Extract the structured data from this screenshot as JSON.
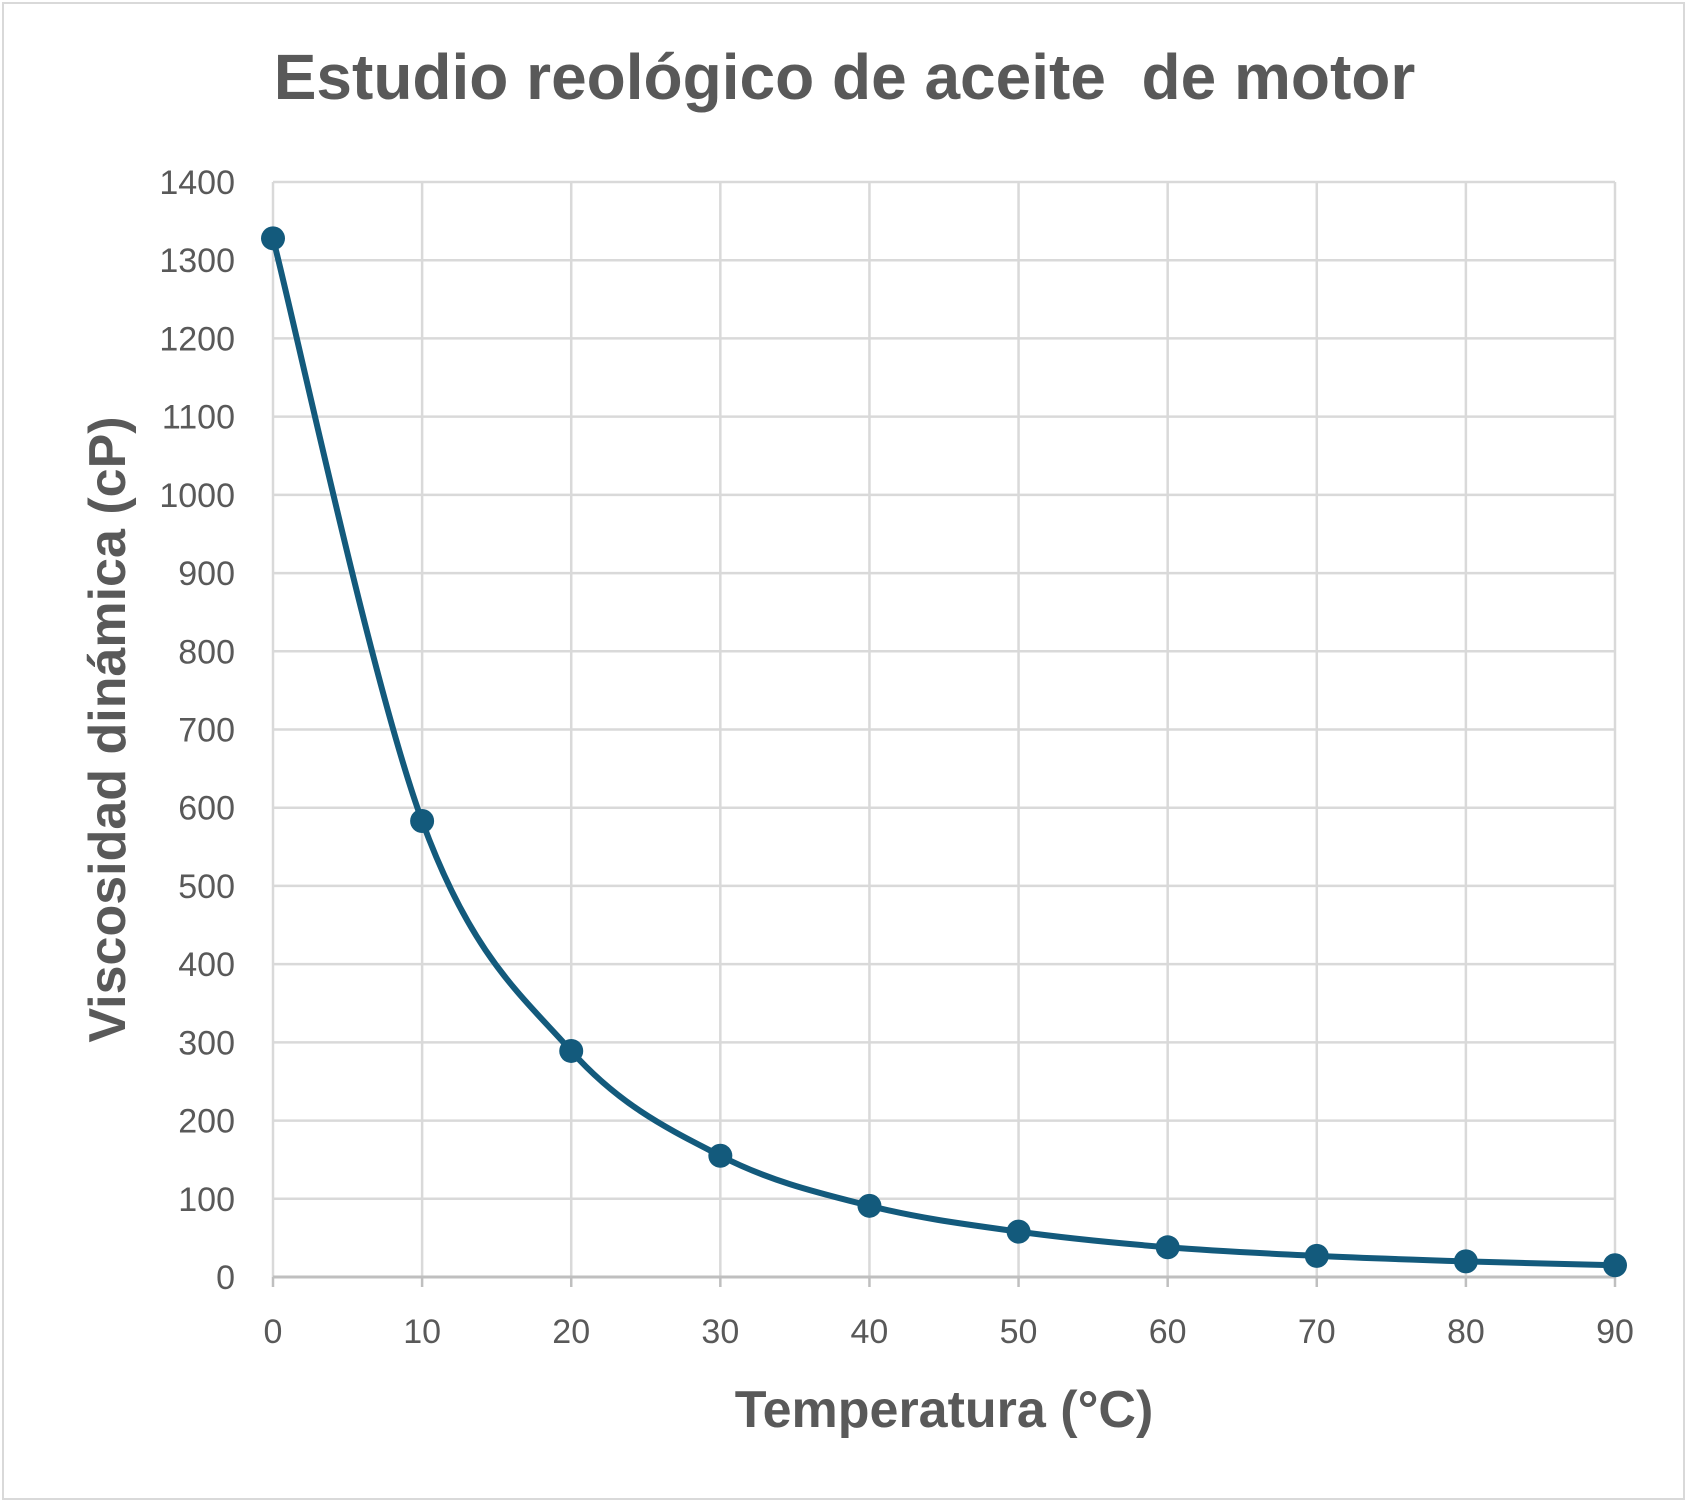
{
  "chart_data": {
    "type": "scatter",
    "title": "Estudio reológico de aceite  de motor",
    "xlabel": "Temperatura (°C)",
    "ylabel": "Viscosidad dinámica (cP)",
    "xlim": [
      0,
      90
    ],
    "ylim": [
      0,
      1400
    ],
    "xticks": [
      "0",
      "10",
      "20",
      "30",
      "40",
      "50",
      "60",
      "70",
      "80",
      "90"
    ],
    "yticks": [
      "0",
      "100",
      "200",
      "300",
      "400",
      "500",
      "600",
      "700",
      "800",
      "900",
      "1000",
      "1100",
      "1200",
      "1300",
      "1400"
    ],
    "grid": true,
    "legend": "none",
    "line_style": "smooth line with markers",
    "series": [
      {
        "x": [
          0,
          10,
          20,
          30,
          40,
          50,
          60,
          70,
          80,
          90
        ],
        "y": [
          1328,
          583,
          289,
          155,
          91,
          58,
          38,
          27,
          20,
          15
        ],
        "color": "#135a7c"
      }
    ],
    "colors": {
      "series": "#135a7c",
      "grid": "#d9d9d9",
      "text": "#595959"
    }
  }
}
